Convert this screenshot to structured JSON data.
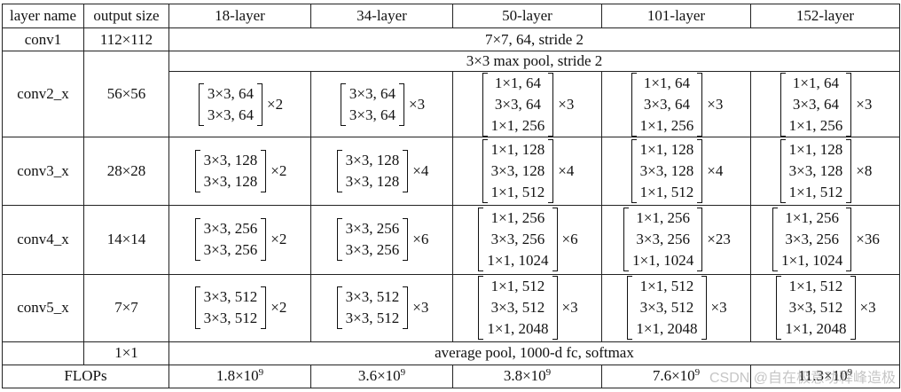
{
  "header": {
    "layer_name": "layer name",
    "output_size": "output size",
    "cols": [
      "18-layer",
      "34-layer",
      "50-layer",
      "101-layer",
      "152-layer"
    ]
  },
  "conv1": {
    "name": "conv1",
    "size": "112×112",
    "spec": "7×7, 64, stride 2"
  },
  "pool": {
    "spec": "3×3 max pool, stride 2"
  },
  "conv2": {
    "name": "conv2_x",
    "size": "56×56",
    "cells": [
      {
        "lines": [
          "3×3, 64",
          "3×3, 64"
        ],
        "rep": "×2"
      },
      {
        "lines": [
          "3×3, 64",
          "3×3, 64"
        ],
        "rep": "×3"
      },
      {
        "lines": [
          "1×1, 64",
          "3×3, 64",
          "1×1, 256"
        ],
        "rep": "×3"
      },
      {
        "lines": [
          "1×1, 64",
          "3×3, 64",
          "1×1, 256"
        ],
        "rep": "×3"
      },
      {
        "lines": [
          "1×1, 64",
          "3×3, 64",
          "1×1, 256"
        ],
        "rep": "×3"
      }
    ]
  },
  "conv3": {
    "name": "conv3_x",
    "size": "28×28",
    "cells": [
      {
        "lines": [
          "3×3, 128",
          "3×3, 128"
        ],
        "rep": "×2"
      },
      {
        "lines": [
          "3×3, 128",
          "3×3, 128"
        ],
        "rep": "×4"
      },
      {
        "lines": [
          "1×1, 128",
          "3×3, 128",
          "1×1, 512"
        ],
        "rep": "×4"
      },
      {
        "lines": [
          "1×1, 128",
          "3×3, 128",
          "1×1, 512"
        ],
        "rep": "×4"
      },
      {
        "lines": [
          "1×1, 128",
          "3×3, 128",
          "1×1, 512"
        ],
        "rep": "×8"
      }
    ]
  },
  "conv4": {
    "name": "conv4_x",
    "size": "14×14",
    "cells": [
      {
        "lines": [
          "3×3, 256",
          "3×3, 256"
        ],
        "rep": "×2"
      },
      {
        "lines": [
          "3×3, 256",
          "3×3, 256"
        ],
        "rep": "×6"
      },
      {
        "lines": [
          "1×1, 256",
          "3×3, 256",
          "1×1, 1024"
        ],
        "rep": "×6"
      },
      {
        "lines": [
          "1×1, 256",
          "3×3, 256",
          "1×1, 1024"
        ],
        "rep": "×23"
      },
      {
        "lines": [
          "1×1, 256",
          "3×3, 256",
          "1×1, 1024"
        ],
        "rep": "×36"
      }
    ]
  },
  "conv5": {
    "name": "conv5_x",
    "size": "7×7",
    "cells": [
      {
        "lines": [
          "3×3, 512",
          "3×3, 512"
        ],
        "rep": "×2"
      },
      {
        "lines": [
          "3×3, 512",
          "3×3, 512"
        ],
        "rep": "×3"
      },
      {
        "lines": [
          "1×1, 512",
          "3×3, 512",
          "1×1, 2048"
        ],
        "rep": "×3"
      },
      {
        "lines": [
          "1×1, 512",
          "3×3, 512",
          "1×1, 2048"
        ],
        "rep": "×3"
      },
      {
        "lines": [
          "1×1, 512",
          "3×3, 512",
          "1×1, 2048"
        ],
        "rep": "×3"
      }
    ]
  },
  "avg": {
    "size": "1×1",
    "spec": "average pool, 1000-d fc, softmax"
  },
  "flops": {
    "label": "FLOPs",
    "values": [
      {
        "base": "1.8×10",
        "exp": "9"
      },
      {
        "base": "3.6×10",
        "exp": "9"
      },
      {
        "base": "3.8×10",
        "exp": "9"
      },
      {
        "base": "7.6×10",
        "exp": "9"
      },
      {
        "base": "11.3×10",
        "exp": "9"
      }
    ]
  },
  "watermark": "CSDN @自在极意功释峰造极"
}
